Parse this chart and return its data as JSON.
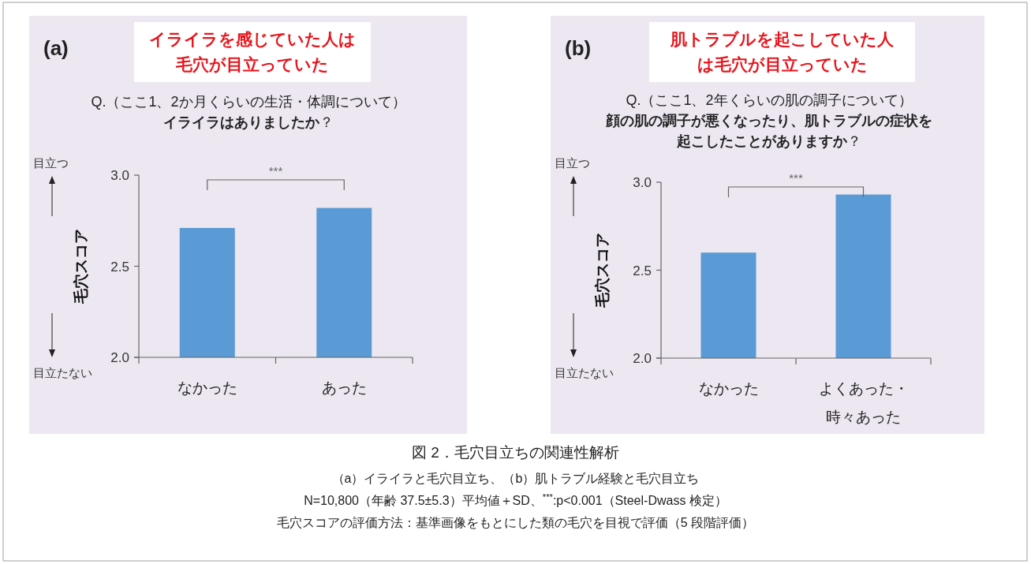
{
  "chart_data": [
    {
      "type": "bar",
      "title": "イライラを感じていた人は毛穴が目立っていた",
      "subtitle": "Q.（ここ1、2か月くらいの生活・体調について）**イライラはありましたか**？",
      "ylabel": "毛穴スコア",
      "categories": [
        "なかった",
        "あった"
      ],
      "values": [
        2.71,
        2.82
      ],
      "color": "#5b9bd5",
      "ylim": [
        2.0,
        3.0
      ],
      "yticks": [
        {
          "value": 2.0,
          "label": "2.0"
        },
        {
          "value": 2.5,
          "label": "2.5"
        },
        {
          "value": 3.0,
          "label": "3.0"
        }
      ],
      "annotations": [
        "(a)",
        "目立つ",
        "目立たない",
        "***"
      ]
    },
    {
      "type": "bar",
      "title": "肌トラブルを起こしていた人は毛穴が目立っていた",
      "subtitle": "Q.（ここ1、2年くらいの肌の調子について）**顔の肌の調子が悪くなったり、肌トラブルの症状を起こしたことがありますか**？",
      "ylabel": "毛穴スコア",
      "categories": [
        "なかった",
        "よくあった・時々あった"
      ],
      "values": [
        2.6,
        2.93
      ],
      "color": "#5b9bd5",
      "ylim": [
        2.0,
        3.0
      ],
      "yticks": [
        {
          "value": 2.0,
          "label": "2.0"
        },
        {
          "value": 2.5,
          "label": "2.5"
        },
        {
          "value": 3.0,
          "label": "3.0"
        }
      ],
      "annotations": [
        "(b)",
        "目立つ",
        "目立たない",
        "***",
        "図 2．毛穴目立ちの関連性解析",
        "（a）イライラと毛穴目立ち、（b）肌トラブル経験と毛穴目立ち",
        "N=10,800（年齢 37.5±5.3）平均値＋SD、$^{***}$:p<0.001（Steel-Dwass 検定）",
        "毛穴スコアの評価方法：基準画像をもとにした類の毛穴を目視で評価（5 段階評価）"
      ]
    }
  ]
}
